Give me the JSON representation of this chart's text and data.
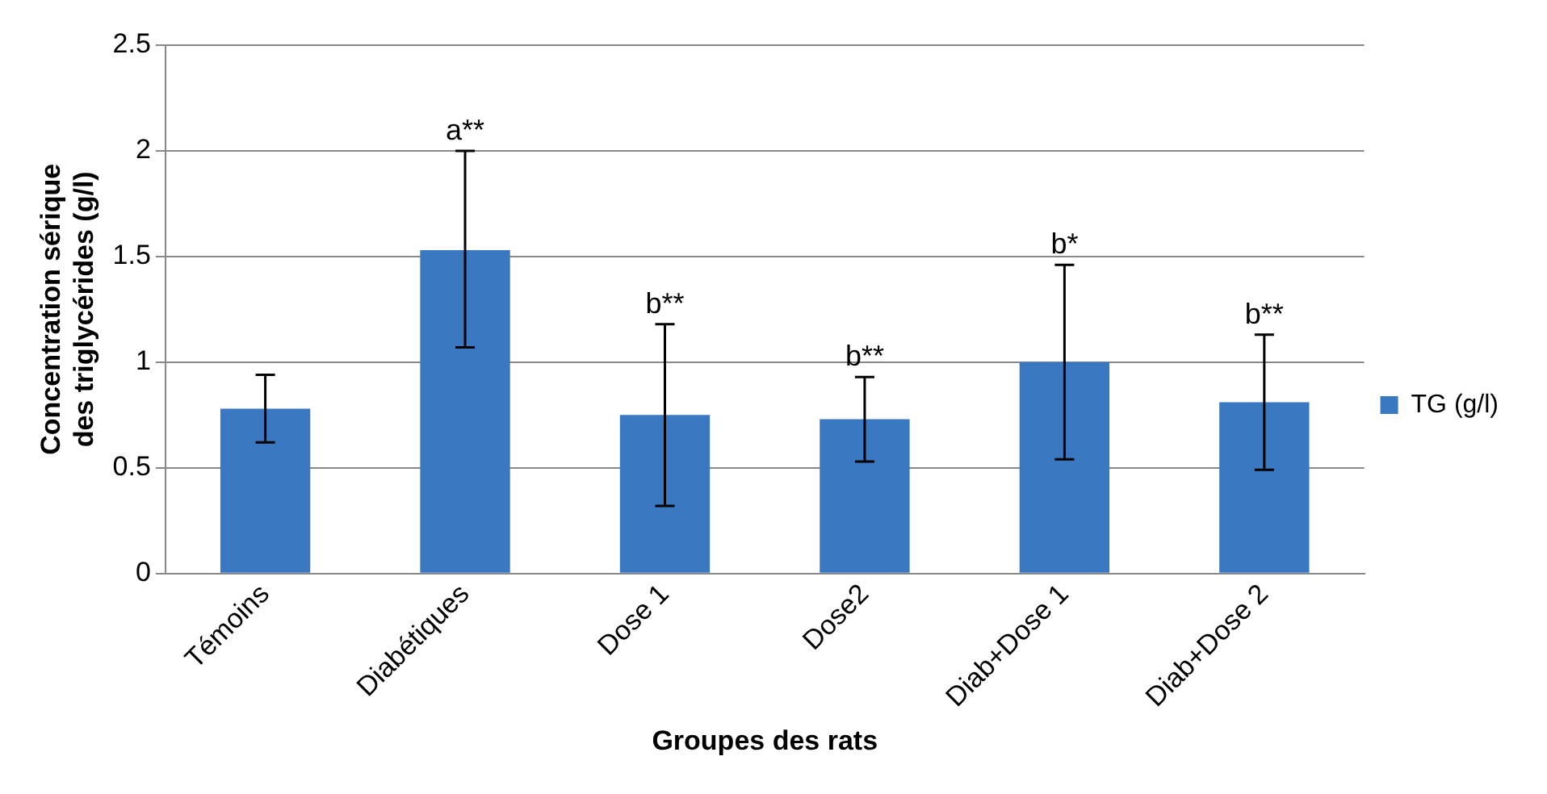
{
  "chart_data": {
    "type": "bar",
    "xlabel": "Groupes des rats",
    "ylabel": "Concentration sérique des triglycérides (g/l)",
    "categories": [
      "Témoins",
      "Diabétiques",
      "Dose 1",
      "Dose2",
      "Diab+Dose 1",
      "Diab+Dose 2"
    ],
    "series": [
      {
        "name": "TG (g/l)",
        "color": "#3a78c2",
        "values": [
          0.78,
          1.53,
          0.75,
          0.73,
          1.0,
          0.81
        ],
        "errors": [
          [
            0.62,
            0.94
          ],
          [
            1.07,
            2.0
          ],
          [
            0.32,
            1.18
          ],
          [
            0.53,
            0.93
          ],
          [
            0.54,
            1.46
          ],
          [
            0.49,
            1.13
          ]
        ]
      }
    ],
    "ylim": [
      0,
      2.5
    ],
    "yticks": [
      0,
      0.5,
      1,
      1.5,
      2,
      2.5
    ],
    "grid": "y",
    "legend": "right",
    "annotations": [
      {
        "text": "a**",
        "x": "Diabétiques",
        "y": 2.0
      },
      {
        "text": "b**",
        "x": "Dose 1",
        "y": 1.18
      },
      {
        "text": "b**",
        "x": "Dose2",
        "y": 0.93
      },
      {
        "text": "b*",
        "x": "Diab+Dose 1",
        "y": 1.46
      },
      {
        "text": "b**",
        "x": "Diab+Dose 2",
        "y": 1.13
      }
    ]
  }
}
